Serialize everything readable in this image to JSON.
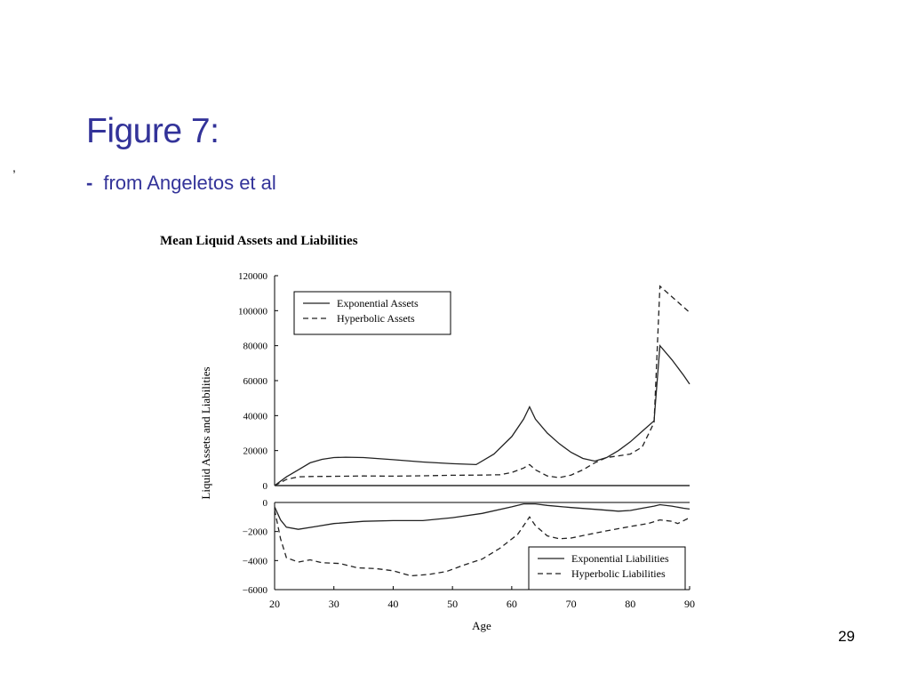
{
  "slide": {
    "title": "Figure 7:",
    "subtitle_dash": "-",
    "subtitle": "from Angeletos et al",
    "stray_mark": ",",
    "page_number": "29",
    "title_color": "#333399"
  },
  "chart_data": {
    "type": "line",
    "title": "Mean Liquid Assets and Liabilities",
    "ylabel": "Liquid Assets and Liabilities",
    "xlabel": "Age",
    "x_ticks": [
      20,
      30,
      40,
      50,
      60,
      70,
      80,
      90
    ],
    "xlim": [
      20,
      90
    ],
    "grid": false,
    "panels": [
      {
        "name": "assets",
        "ylim": [
          0,
          120000
        ],
        "y_ticks": [
          0,
          20000,
          40000,
          60000,
          80000,
          100000,
          120000
        ],
        "y_tick_labels": [
          "0",
          "20000",
          "40000",
          "60000",
          "80000",
          "100000",
          "120000"
        ],
        "legend_position": "top-left",
        "series": [
          {
            "name": "Exponential Assets",
            "style": "solid",
            "points": [
              [
                20,
                0
              ],
              [
                22,
                5000
              ],
              [
                24,
                9000
              ],
              [
                26,
                13000
              ],
              [
                28,
                15000
              ],
              [
                30,
                16000
              ],
              [
                32,
                16200
              ],
              [
                35,
                16000
              ],
              [
                40,
                14800
              ],
              [
                45,
                13500
              ],
              [
                50,
                12500
              ],
              [
                54,
                12000
              ],
              [
                57,
                18000
              ],
              [
                60,
                28000
              ],
              [
                62,
                38000
              ],
              [
                63,
                45000
              ],
              [
                64,
                38000
              ],
              [
                66,
                30000
              ],
              [
                68,
                24000
              ],
              [
                70,
                19000
              ],
              [
                72,
                15500
              ],
              [
                74,
                14000
              ],
              [
                76,
                16000
              ],
              [
                78,
                20000
              ],
              [
                80,
                25000
              ],
              [
                82,
                31000
              ],
              [
                84,
                37000
              ],
              [
                85,
                80000
              ],
              [
                87,
                72000
              ],
              [
                89,
                63000
              ],
              [
                90,
                58000
              ]
            ]
          },
          {
            "name": "Hyperbolic Assets",
            "style": "dashed",
            "points": [
              [
                20,
                0
              ],
              [
                22,
                3500
              ],
              [
                24,
                5000
              ],
              [
                26,
                5200
              ],
              [
                30,
                5300
              ],
              [
                35,
                5500
              ],
              [
                40,
                5400
              ],
              [
                45,
                5600
              ],
              [
                50,
                5900
              ],
              [
                55,
                6000
              ],
              [
                58,
                6200
              ],
              [
                60,
                7500
              ],
              [
                62,
                10000
              ],
              [
                63,
                12000
              ],
              [
                64,
                9000
              ],
              [
                66,
                5500
              ],
              [
                68,
                4500
              ],
              [
                70,
                6000
              ],
              [
                72,
                9000
              ],
              [
                74,
                13000
              ],
              [
                76,
                16000
              ],
              [
                78,
                17000
              ],
              [
                80,
                18000
              ],
              [
                82,
                22000
              ],
              [
                84,
                36000
              ],
              [
                85,
                114000
              ],
              [
                87,
                108000
              ],
              [
                89,
                102000
              ],
              [
                90,
                99000
              ]
            ]
          }
        ]
      },
      {
        "name": "liabilities",
        "ylim": [
          -6000,
          0
        ],
        "y_ticks": [
          0,
          -2000,
          -4000,
          -6000
        ],
        "y_tick_labels": [
          "0",
          "−2000",
          "−4000",
          "−6000"
        ],
        "legend_position": "bottom-right",
        "series": [
          {
            "name": "Exponential Liabilities",
            "style": "solid",
            "points": [
              [
                20,
                -300
              ],
              [
                21,
                -1200
              ],
              [
                22,
                -1700
              ],
              [
                24,
                -1850
              ],
              [
                27,
                -1650
              ],
              [
                30,
                -1450
              ],
              [
                35,
                -1300
              ],
              [
                40,
                -1250
              ],
              [
                45,
                -1250
              ],
              [
                50,
                -1050
              ],
              [
                55,
                -750
              ],
              [
                60,
                -300
              ],
              [
                62,
                -100
              ],
              [
                64,
                -100
              ],
              [
                66,
                -200
              ],
              [
                70,
                -350
              ],
              [
                75,
                -500
              ],
              [
                78,
                -600
              ],
              [
                80,
                -550
              ],
              [
                82,
                -400
              ],
              [
                84,
                -250
              ],
              [
                85,
                -150
              ],
              [
                87,
                -250
              ],
              [
                89,
                -400
              ],
              [
                90,
                -450
              ]
            ]
          },
          {
            "name": "Hyperbolic Liabilities",
            "style": "dashed",
            "points": [
              [
                20,
                -500
              ],
              [
                21,
                -2500
              ],
              [
                22,
                -3800
              ],
              [
                24,
                -4100
              ],
              [
                26,
                -3950
              ],
              [
                28,
                -4150
              ],
              [
                31,
                -4200
              ],
              [
                34,
                -4500
              ],
              [
                37,
                -4550
              ],
              [
                40,
                -4700
              ],
              [
                43,
                -5050
              ],
              [
                46,
                -4950
              ],
              [
                49,
                -4750
              ],
              [
                52,
                -4300
              ],
              [
                55,
                -3900
              ],
              [
                58,
                -3150
              ],
              [
                61,
                -2200
              ],
              [
                63,
                -1000
              ],
              [
                64,
                -1600
              ],
              [
                66,
                -2300
              ],
              [
                68,
                -2500
              ],
              [
                70,
                -2450
              ],
              [
                73,
                -2200
              ],
              [
                76,
                -1950
              ],
              [
                80,
                -1650
              ],
              [
                83,
                -1450
              ],
              [
                85,
                -1200
              ],
              [
                87,
                -1300
              ],
              [
                88,
                -1450
              ],
              [
                90,
                -1050
              ]
            ]
          }
        ]
      }
    ]
  }
}
